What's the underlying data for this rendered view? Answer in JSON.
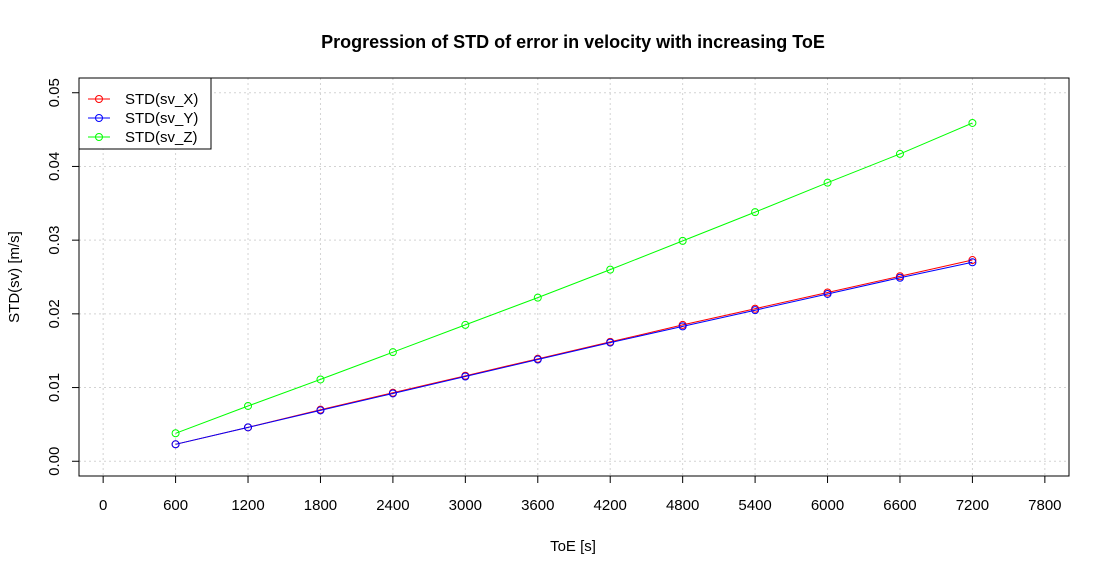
{
  "chart_data": {
    "type": "line",
    "title": "Progression of STD of error in velocity with increasing ToE",
    "xlabel": "ToE [s]",
    "ylabel": "STD(sv) [m/s]",
    "xlim": [
      -200,
      8000
    ],
    "ylim": [
      -0.002,
      0.052
    ],
    "x_ticks": [
      0,
      600,
      1200,
      1800,
      2400,
      3000,
      3600,
      4200,
      4800,
      5400,
      6000,
      6600,
      7200,
      7800
    ],
    "x_tick_labels": [
      "0",
      "600",
      "1200",
      "1800",
      "2400",
      "3000",
      "3600",
      "4200",
      "4800",
      "5400",
      "6000",
      "6600",
      "7200",
      "7800"
    ],
    "y_ticks": [
      0,
      0.01,
      0.02,
      0.03,
      0.04,
      0.05
    ],
    "y_tick_labels": [
      "0.00",
      "0.01",
      "0.02",
      "0.03",
      "0.04",
      "0.05"
    ],
    "grid": true,
    "legend_position": "top-left",
    "x": [
      600,
      1200,
      1800,
      2400,
      3000,
      3600,
      4200,
      4800,
      5400,
      6000,
      6600,
      7200
    ],
    "series": [
      {
        "name": "STD(sv_X)",
        "color": "#ff0000",
        "values": [
          0.0023,
          0.0046,
          0.007,
          0.0093,
          0.0116,
          0.0139,
          0.0162,
          0.0185,
          0.0207,
          0.0229,
          0.0251,
          0.0273
        ]
      },
      {
        "name": "STD(sv_Y)",
        "color": "#0000ff",
        "values": [
          0.0023,
          0.0046,
          0.0069,
          0.0092,
          0.0115,
          0.0138,
          0.0161,
          0.0183,
          0.0205,
          0.0227,
          0.0249,
          0.027
        ]
      },
      {
        "name": "STD(sv_Z)",
        "color": "#00ff00",
        "values": [
          0.0038,
          0.0075,
          0.0111,
          0.0148,
          0.0185,
          0.0222,
          0.026,
          0.0299,
          0.0338,
          0.0378,
          0.0417,
          0.0459
        ]
      }
    ]
  }
}
